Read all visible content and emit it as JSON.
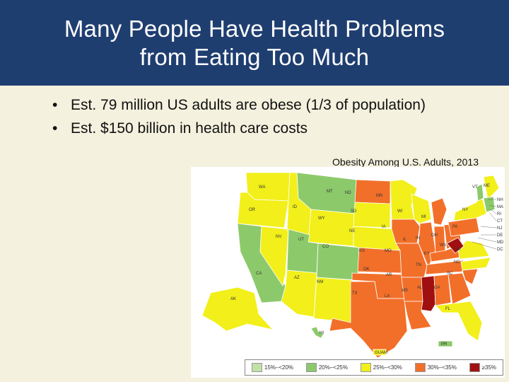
{
  "slide": {
    "title_line1": "Many People Have Health Problems",
    "title_line2": "from Eating Too Much",
    "bullets": [
      "Est. 79 million US adults are obese (1/3 of population)",
      "Est. $150 billion in health care costs"
    ]
  },
  "map": {
    "caption": "Obesity Among U.S. Adults, 2013",
    "legend": [
      {
        "label": "15%–<20%",
        "color": "#c3e0a8"
      },
      {
        "label": "20%–<25%",
        "color": "#8cc96b"
      },
      {
        "label": "25%–<30%",
        "color": "#f2ef1a"
      },
      {
        "label": "30%–<35%",
        "color": "#f26f2a"
      },
      {
        "label": "≥35%",
        "color": "#a01010"
      }
    ],
    "state_labels": {
      "WA": "WA",
      "OR": "OR",
      "CA": "CA",
      "NV": "NV",
      "ID": "ID",
      "MT": "MT",
      "WY": "WY",
      "UT": "UT",
      "AZ": "AZ",
      "CO": "CO",
      "NM": "NM",
      "ND": "ND",
      "SD": "SD",
      "NE": "NE",
      "KS": "KS",
      "OK": "OK",
      "TX": "TX",
      "MN": "MN",
      "IA": "IA",
      "MO": "MO",
      "AR": "AR",
      "LA": "LA",
      "WI": "WI",
      "IL": "IL",
      "MI": "MI",
      "IN": "IN",
      "OH": "OH",
      "KY": "KY",
      "TN": "TN",
      "MS": "MS",
      "AL": "AL",
      "GA": "GA",
      "FL": "FL",
      "SC": "SC",
      "NC": "NC",
      "VA": "VA",
      "WV": "WV",
      "PA": "PA",
      "NY": "NY",
      "VT": "VT",
      "ME": "ME",
      "AK": "AK",
      "HI": "HI",
      "NH": "NH",
      "MA": "MA",
      "RI": "RI",
      "CT": "CT",
      "NJ": "NJ",
      "DE": "DE",
      "MD": "MD",
      "DC": "DC",
      "GUAM": "GUAM",
      "PR": "PR"
    }
  }
}
